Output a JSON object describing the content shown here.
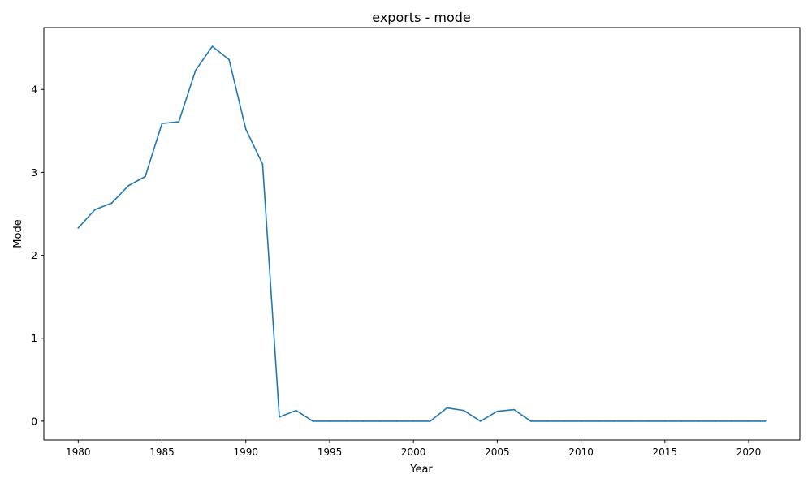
{
  "chart_data": {
    "type": "line",
    "title": "exports - mode",
    "xlabel": "Year",
    "ylabel": "Mode",
    "xlim": [
      1977.95,
      2023.05
    ],
    "ylim": [
      -0.226,
      4.746
    ],
    "xticks": [
      1980,
      1985,
      1990,
      1995,
      2000,
      2005,
      2010,
      2015,
      2020
    ],
    "yticks": [
      0,
      1,
      2,
      3,
      4
    ],
    "grid": false,
    "legend": "none",
    "line_color": "#1f77b4",
    "series": [
      {
        "x": [
          1980,
          1981,
          1982,
          1983,
          1984,
          1985,
          1986,
          1987,
          1988,
          1989,
          1990,
          1991,
          1992,
          1993,
          1994,
          1995,
          1996,
          1997,
          1998,
          1999,
          2000,
          2001,
          2002,
          2003,
          2004,
          2005,
          2006,
          2007,
          2008,
          2009,
          2010,
          2011,
          2012,
          2013,
          2014,
          2015,
          2016,
          2017,
          2018,
          2019,
          2020,
          2021
        ],
        "values": [
          2.33,
          2.55,
          2.63,
          2.84,
          2.95,
          3.59,
          3.61,
          4.23,
          4.52,
          4.36,
          3.52,
          3.1,
          0.05,
          0.13,
          0.0,
          0.0,
          0.0,
          0.0,
          0.0,
          0.0,
          0.0,
          0.0,
          0.16,
          0.13,
          0.0,
          0.12,
          0.14,
          0.0,
          0.0,
          0.0,
          0.0,
          0.0,
          0.0,
          0.0,
          0.0,
          0.0,
          0.0,
          0.0,
          0.0,
          0.0,
          0.0,
          0.0
        ]
      }
    ]
  }
}
